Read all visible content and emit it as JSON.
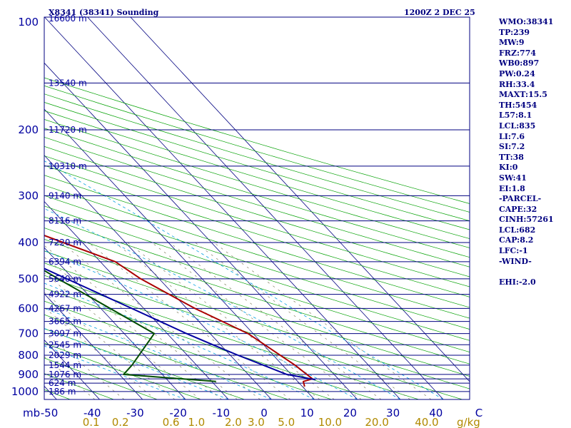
{
  "title_left": "X8341 (38341) Sounding",
  "title_right": "1200Z  2 DEC 25",
  "indices": [
    "WMO:38341",
    "TP:239",
    "MW:9",
    "FRZ:774",
    "WB0:897",
    "PW:0.24",
    "RH:33.4",
    "MAXT:15.5",
    "TH:5454",
    "L57:8.1",
    "LCL:835",
    "LI:7.6",
    "SI:7.2",
    "TT:38",
    "KI:0",
    "SW:41",
    "EI:1.8",
    "-PARCEL-",
    "CAPE:32",
    "CINH:57261",
    "LCL:682",
    "CAP:8.2",
    "LFC:-1",
    "-WIND-",
    "",
    "EHI:-2.0"
  ],
  "colors": {
    "isobar": "#000080",
    "isotherm": "#000080",
    "dry_adiabat": "#00a000",
    "moist_adiabat": "#00a0e0",
    "mixing_ratio": "#808060",
    "temperature": "#aa0000",
    "dewpoint": "#004d00",
    "parcel": "#0000a0",
    "text": "#000080",
    "wlabel": "#b08a00"
  },
  "chart_data": {
    "type": "line",
    "title": "X8341 (38341) Sounding",
    "subtitle": "1200Z  2 DEC 25",
    "xlabel": "Temperature (C)",
    "ylabel": "Pressure (mb)",
    "pressure_unit_label": "mb",
    "xlim": [
      -50,
      50
    ],
    "ylim": [
      1000,
      100
    ],
    "isobars": [
      1000,
      950,
      925,
      900,
      850,
      800,
      750,
      700,
      650,
      600,
      550,
      500,
      450,
      400,
      350,
      300,
      250,
      200,
      150,
      100
    ],
    "pressure_labels": [
      {
        "p": 100,
        "label": "100"
      },
      {
        "p": 200,
        "label": "200"
      },
      {
        "p": 300,
        "label": "300"
      },
      {
        "p": 400,
        "label": "400"
      },
      {
        "p": 500,
        "label": "500"
      },
      {
        "p": 600,
        "label": "600"
      },
      {
        "p": 700,
        "label": "700"
      },
      {
        "p": 800,
        "label": "800"
      },
      {
        "p": 900,
        "label": "900"
      },
      {
        "p": 1000,
        "label": "1000"
      }
    ],
    "height_labels": [
      {
        "p": 100,
        "label": "16600 m"
      },
      {
        "p": 150,
        "label": "13540 m"
      },
      {
        "p": 200,
        "label": "11720 m"
      },
      {
        "p": 250,
        "label": "10310 m"
      },
      {
        "p": 300,
        "label": "9140 m"
      },
      {
        "p": 350,
        "label": "8116 m"
      },
      {
        "p": 400,
        "label": "7220 m"
      },
      {
        "p": 450,
        "label": "6394 m"
      },
      {
        "p": 500,
        "label": "5640 m"
      },
      {
        "p": 550,
        "label": "4922 m"
      },
      {
        "p": 600,
        "label": "4267 m"
      },
      {
        "p": 650,
        "label": "3665 m"
      },
      {
        "p": 700,
        "label": "3097 m"
      },
      {
        "p": 750,
        "label": "2545 m"
      },
      {
        "p": 800,
        "label": "2029 m"
      },
      {
        "p": 850,
        "label": "1544 m"
      },
      {
        "p": 900,
        "label": "1076 m"
      },
      {
        "p": 950,
        "label": "624 m"
      },
      {
        "p": 1000,
        "label": "186 m"
      }
    ],
    "temp_ticks": [
      {
        "t": -50,
        "label": "-50"
      },
      {
        "t": -40,
        "label": "-40"
      },
      {
        "t": -30,
        "label": "-30"
      },
      {
        "t": -20,
        "label": "-20"
      },
      {
        "t": -10,
        "label": "-10"
      },
      {
        "t": 0,
        "label": "0"
      },
      {
        "t": 10,
        "label": "10"
      },
      {
        "t": 20,
        "label": "20"
      },
      {
        "t": 30,
        "label": "30"
      },
      {
        "t": 40,
        "label": "40"
      },
      {
        "t": 50,
        "label": "C"
      }
    ],
    "mixing_ratio_labels": [
      {
        "w": 0.1,
        "label": "0.1"
      },
      {
        "w": 0.2,
        "label": "0.2"
      },
      {
        "w": 0.6,
        "label": "0.6"
      },
      {
        "w": 1.0,
        "label": "1.0"
      },
      {
        "w": 2.0,
        "label": "2.0"
      },
      {
        "w": 3.0,
        "label": "3.0"
      },
      {
        "w": 5.0,
        "label": "5.0"
      },
      {
        "w": 10.0,
        "label": "10.0"
      },
      {
        "w": 20.0,
        "label": "20.0"
      },
      {
        "w": 40.0,
        "label": "40.0"
      }
    ],
    "mixing_ratio_unit": "g/kg",
    "series": [
      {
        "name": "Temperature",
        "points": [
          [
            970,
            10.5
          ],
          [
            940,
            11.3
          ],
          [
            925,
            14.0
          ],
          [
            850,
            12.9
          ],
          [
            700,
            8.8
          ],
          [
            600,
            1.9
          ],
          [
            500,
            -4.3
          ],
          [
            450,
            -6.5
          ],
          [
            400,
            -14.5
          ],
          [
            300,
            -33.5
          ],
          [
            280,
            -37.5
          ],
          [
            250,
            -42.0
          ],
          [
            200,
            -46.5
          ],
          [
            150,
            -52.5
          ],
          [
            100,
            -57.0
          ]
        ]
      },
      {
        "name": "Dewpoint",
        "points": [
          [
            940,
            -9.0
          ],
          [
            930,
            -14.0
          ],
          [
            900,
            -29.0
          ],
          [
            850,
            -25.0
          ],
          [
            700,
            -13.0
          ],
          [
            500,
            -23.5
          ],
          [
            450,
            -26.5
          ],
          [
            400,
            -33.0
          ],
          [
            300,
            -52.0
          ],
          [
            250,
            -64.5
          ],
          [
            200,
            -77.0
          ],
          [
            150,
            -83.0
          ],
          [
            100,
            -99.0
          ]
        ]
      },
      {
        "name": "Parcel",
        "points": [
          [
            930,
            14.5
          ],
          [
            900,
            9.0
          ],
          [
            850,
            5.5
          ],
          [
            800,
            1.8
          ],
          [
            750,
            -1.8
          ],
          [
            700,
            -5.5
          ],
          [
            650,
            -9.0
          ],
          [
            600,
            -12.8
          ],
          [
            500,
            -21.5
          ],
          [
            450,
            -26.5
          ],
          [
            400,
            -32.5
          ],
          [
            300,
            -47.0
          ],
          [
            250,
            -55.5
          ],
          [
            200,
            -66.0
          ],
          [
            150,
            -79.0
          ],
          [
            115,
            -92.0
          ]
        ]
      }
    ]
  }
}
